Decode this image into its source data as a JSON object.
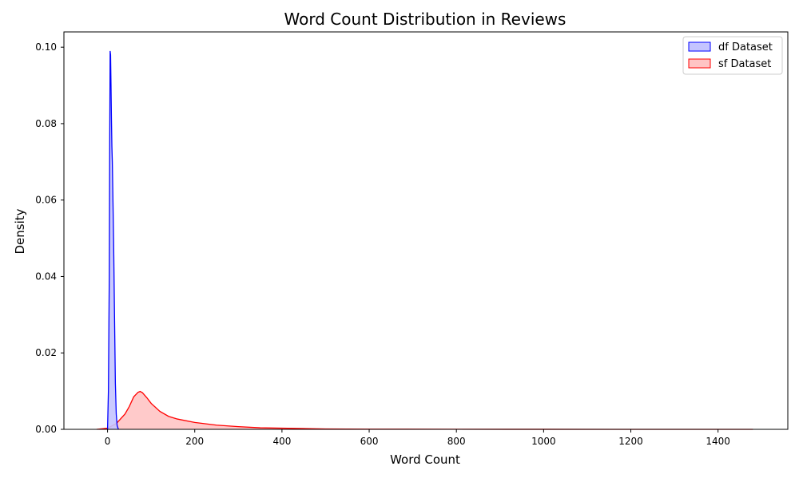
{
  "chart_data": {
    "type": "area",
    "title": "Word Count Distribution in Reviews",
    "xlabel": "Word Count",
    "ylabel": "Density",
    "xlim": [
      -100,
      1560
    ],
    "ylim": [
      0,
      0.104
    ],
    "xticks": [
      0,
      200,
      400,
      600,
      800,
      1000,
      1200,
      1400
    ],
    "yticks": [
      0.0,
      0.02,
      0.04,
      0.06,
      0.08,
      0.1
    ],
    "xtick_labels": [
      "0",
      "200",
      "400",
      "600",
      "800",
      "1000",
      "1200",
      "1400"
    ],
    "ytick_labels": [
      "0.00",
      "0.02",
      "0.04",
      "0.06",
      "0.08",
      "0.10"
    ],
    "grid": false,
    "legend_position": "top-right",
    "series": [
      {
        "name": "df Dataset",
        "color": "#0000ff",
        "fill": "#c4c4ff",
        "x": [
          0,
          2,
          4,
          5,
          6,
          7,
          8,
          9,
          10,
          11,
          12,
          13,
          14,
          16,
          18,
          20,
          22,
          25
        ],
        "y": [
          0.0,
          0.01,
          0.04,
          0.075,
          0.099,
          0.098,
          0.09,
          0.081,
          0.074,
          0.07,
          0.063,
          0.056,
          0.049,
          0.03,
          0.012,
          0.004,
          0.001,
          0.0
        ]
      },
      {
        "name": "sf Dataset",
        "color": "#ff0000",
        "fill": "#ffc4c4",
        "x": [
          -25,
          0,
          20,
          40,
          50,
          60,
          70,
          75,
          80,
          90,
          100,
          120,
          140,
          160,
          200,
          250,
          300,
          350,
          400,
          500,
          600,
          800,
          1000,
          1200,
          1480
        ],
        "y": [
          0.0,
          0.0003,
          0.0015,
          0.004,
          0.006,
          0.0085,
          0.0097,
          0.0099,
          0.0096,
          0.0083,
          0.0068,
          0.0047,
          0.0034,
          0.0027,
          0.0018,
          0.0011,
          0.0007,
          0.0004,
          0.0003,
          0.0001,
          5e-05,
          2e-05,
          1e-05,
          0.0,
          0.0
        ]
      }
    ]
  }
}
